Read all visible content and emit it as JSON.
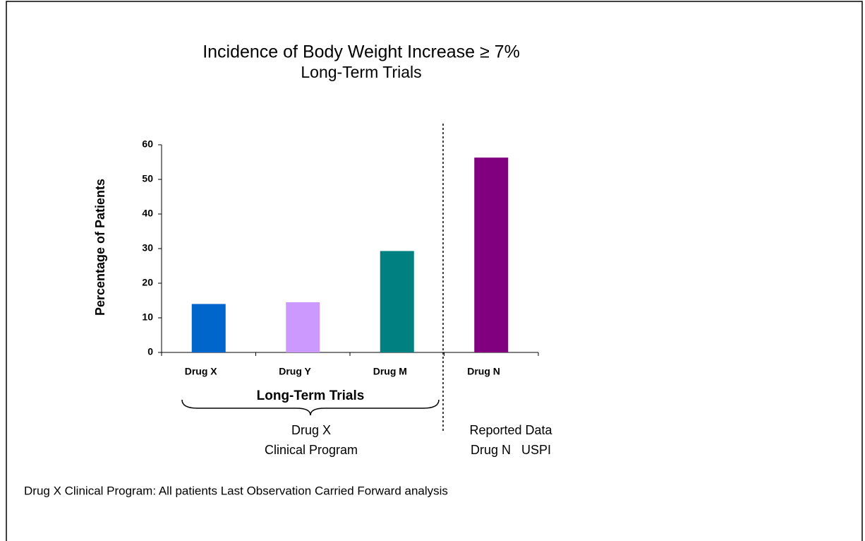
{
  "chart_data": {
    "type": "bar",
    "title": "Incidence of Body Weight Increase ≥ 7%",
    "subtitle": "Long-Term Trials",
    "y_label": "Percentage of Patients",
    "categories": [
      "Drug X",
      "Drug Y",
      "Drug M",
      "Drug N"
    ],
    "values": [
      14,
      14.5,
      29.3,
      56.3
    ],
    "colors": [
      "#0066cc",
      "#cc99ff",
      "#008080",
      "#800080"
    ],
    "ylim": [
      0,
      60
    ],
    "yticks": [
      0,
      10,
      20,
      30,
      40,
      50,
      60
    ],
    "grid": false,
    "group_label": "Long-Term Trials",
    "left_note": [
      "Drug X",
      "Clinical Program"
    ],
    "right_note": [
      "Reported Data",
      "Drug N   USPI"
    ],
    "footnote": "Drug X Clinical Program: All patients Last Observation Carried Forward analysis"
  }
}
